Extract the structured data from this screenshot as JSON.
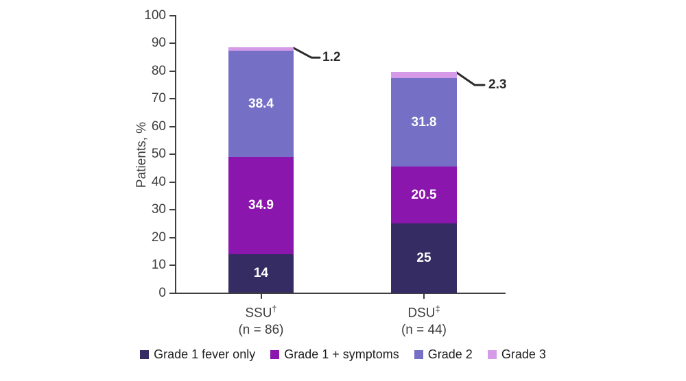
{
  "chart_data": {
    "type": "bar",
    "subtype": "stacked-vertical",
    "title": "",
    "ylabel": "Patients, %",
    "xlabel": "",
    "ylim": [
      0,
      100
    ],
    "yticks": [
      0,
      10,
      20,
      30,
      40,
      50,
      60,
      70,
      80,
      90,
      100
    ],
    "grid": false,
    "legend_position": "bottom",
    "categories": [
      {
        "label": "SSU",
        "superscript": "†",
        "n_label": "(n = 86)",
        "total": 88.5
      },
      {
        "label": "DSU",
        "superscript": "‡",
        "n_label": "(n = 44)",
        "total": 79.6
      }
    ],
    "series": [
      {
        "name": "Grade 1 fever only",
        "color": "#352c63",
        "values": [
          14,
          25
        ],
        "labels": [
          "14",
          "25"
        ],
        "label_style": "inside"
      },
      {
        "name": "Grade 1 + symptoms",
        "color": "#8a16ad",
        "values": [
          34.9,
          20.5
        ],
        "labels": [
          "34.9",
          "20.5"
        ],
        "label_style": "inside"
      },
      {
        "name": "Grade 2",
        "color": "#7570c6",
        "values": [
          38.4,
          31.8
        ],
        "labels": [
          "38.4",
          "31.8"
        ],
        "label_style": "inside"
      },
      {
        "name": "Grade 3",
        "color": "#d59ae8",
        "values": [
          1.2,
          2.3
        ],
        "labels": [
          "1.2",
          "2.3"
        ],
        "label_style": "callout"
      }
    ]
  },
  "styles": {
    "axis_color": "#3f3f3f",
    "tick_text_color": "#3d3d3d",
    "bar_value_text_color": "#ffffff",
    "callout_color": "#2b2b2b",
    "legend_text_color": "#1e1e1e",
    "background": "#ffffff"
  }
}
